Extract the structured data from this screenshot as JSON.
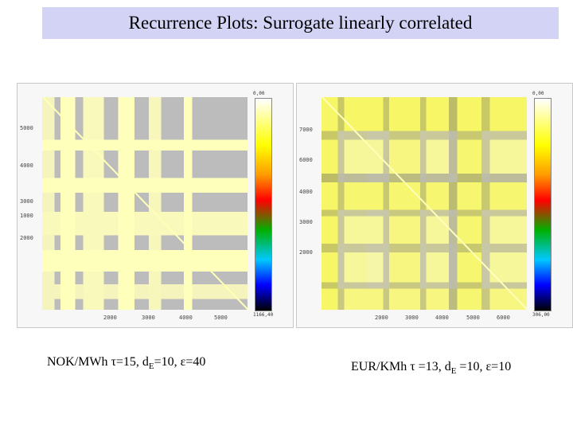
{
  "title": "Recurrence Plots: Surrogate linearly correlated",
  "colors": {
    "title_bar": "#d3d3f5",
    "recurrence": "#ffff66",
    "background": "#bcbcbc"
  },
  "left_plot": {
    "colorbar_top": "0,00",
    "colorbar_bottom": "1166,40",
    "y_ticks": [
      "5000",
      "4000",
      "3000",
      "1000",
      "2000"
    ],
    "x_ticks": [
      "2000",
      "3000",
      "4000",
      "5000"
    ],
    "caption": {
      "prefix": "NOK/MWh ",
      "tau": "τ=15, d",
      "sub": "E",
      "rest": "=10, ε=40"
    }
  },
  "right_plot": {
    "colorbar_top": "0,00",
    "colorbar_bottom": "306,00",
    "y_ticks": [
      "7000",
      "6000",
      "4000",
      "3000",
      "2000"
    ],
    "x_ticks": [
      "2000",
      "3000",
      "4000",
      "5000",
      "6000"
    ],
    "caption": {
      "prefix": "EUR/KMh ",
      "tau": "τ =13, d",
      "sub": "E",
      "rest": " =10, ε=10"
    }
  }
}
